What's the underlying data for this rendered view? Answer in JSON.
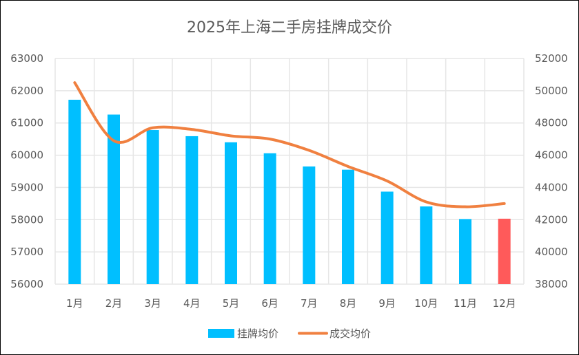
{
  "chart_data": {
    "type": "bar+line",
    "title": "2025年上海二手房挂牌成交价",
    "categories": [
      "1月",
      "2月",
      "3月",
      "4月",
      "5月",
      "6月",
      "7月",
      "8月",
      "9月",
      "10月",
      "11月",
      "12月"
    ],
    "series": [
      {
        "name": "挂牌均价",
        "type": "bar",
        "axis": "left",
        "values": [
          61720,
          61260,
          60780,
          60590,
          60400,
          60060,
          59650,
          59550,
          58870,
          58410,
          58020,
          58030
        ],
        "highlight_index": 11
      },
      {
        "name": "成交均价",
        "type": "line",
        "axis": "right",
        "smooth": true,
        "values": [
          50500,
          46900,
          47700,
          47600,
          47200,
          47000,
          46300,
          45300,
          44400,
          43100,
          42800,
          43000
        ]
      }
    ],
    "y_left": {
      "min": 56000,
      "max": 63000,
      "step": 1000,
      "ticks": [
        "56000",
        "57000",
        "58000",
        "59000",
        "60000",
        "61000",
        "62000",
        "63000"
      ]
    },
    "y_right": {
      "min": 38000,
      "max": 52000,
      "step": 2000,
      "ticks": [
        "38000",
        "40000",
        "42000",
        "44000",
        "46000",
        "48000",
        "50000",
        "52000"
      ]
    },
    "grid": true,
    "legend_position": "bottom",
    "colors": {
      "bar": "#00BFFF",
      "bar_highlight": "#FF5A5A",
      "line": "#F08040",
      "grid": "#E6E6E6",
      "text": "#595959"
    }
  }
}
